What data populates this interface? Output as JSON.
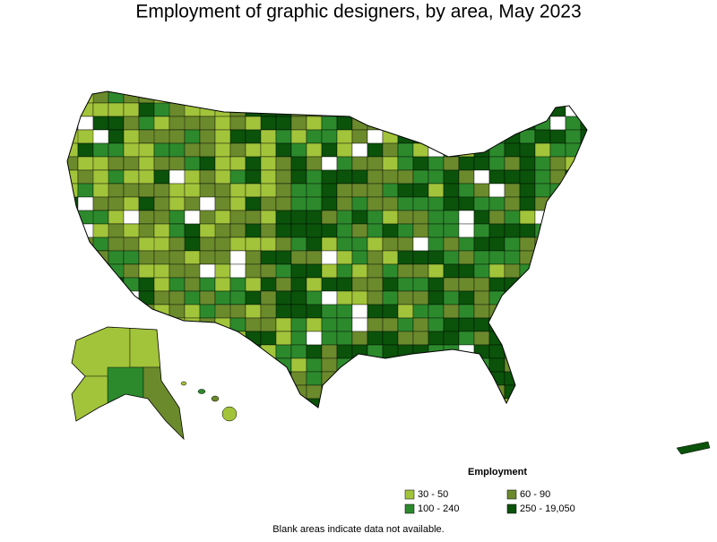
{
  "title": "Employment of graphic designers, by area, May 2023",
  "legend": {
    "title": "Employment",
    "items": [
      {
        "label": "30 - 50",
        "color": "#a2c43a"
      },
      {
        "label": "60 - 90",
        "color": "#6b8a2c"
      },
      {
        "label": "100 - 240",
        "color": "#2c8a2c"
      },
      {
        "label": "250 - 19,050",
        "color": "#0b520b"
      }
    ]
  },
  "note": "Blank areas indicate data not available."
}
